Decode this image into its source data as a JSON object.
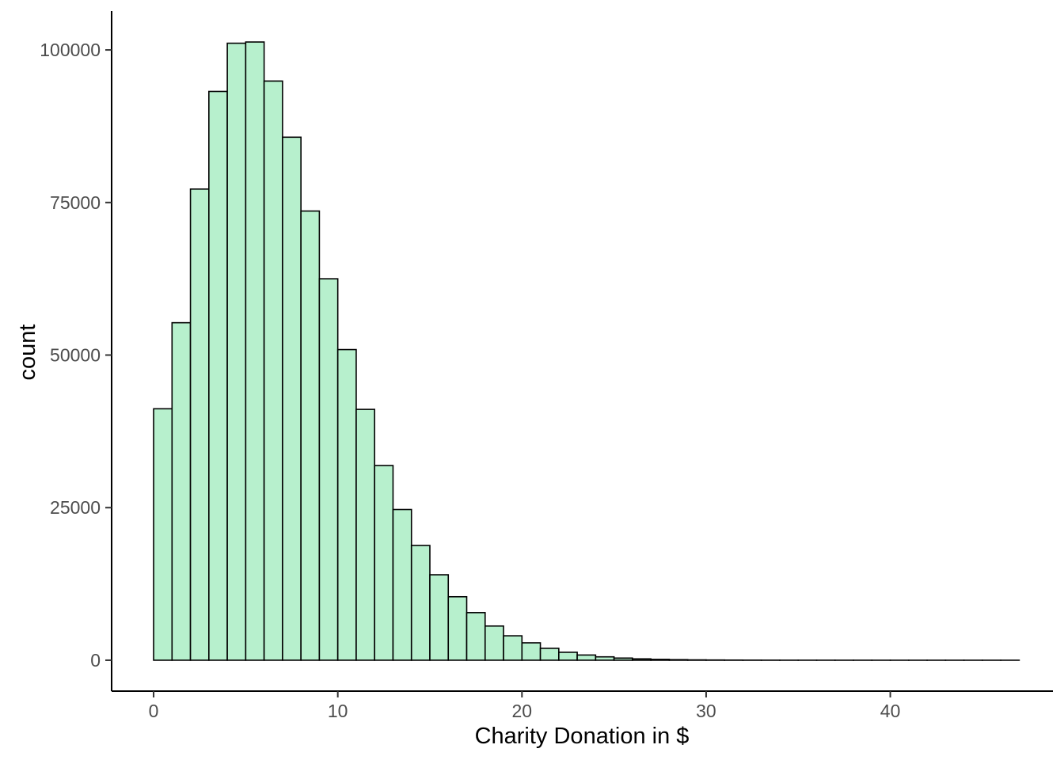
{
  "chart_data": {
    "type": "bar",
    "subtype": "histogram",
    "xlabel": "Charity Donation in $",
    "ylabel": "count",
    "bin_start": 0,
    "bin_width": 1,
    "counts": [
      41200,
      55300,
      77200,
      93200,
      101100,
      101300,
      94900,
      85700,
      73600,
      62500,
      50900,
      41100,
      31900,
      24700,
      18800,
      14000,
      10400,
      7800,
      5600,
      4000,
      2850,
      1950,
      1300,
      850,
      550,
      350,
      220,
      140,
      90,
      55,
      35,
      22,
      14,
      9,
      6,
      4,
      3,
      2,
      2,
      1,
      1,
      1,
      1,
      1,
      1,
      1,
      1
    ],
    "x_ticks": [
      0,
      10,
      20,
      30,
      40
    ],
    "x_tick_labels": [
      "0",
      "10",
      "20",
      "30",
      "40"
    ],
    "y_ticks": [
      0,
      25000,
      50000,
      75000,
      100000
    ],
    "y_tick_labels": [
      "0",
      "25000",
      "50000",
      "75000",
      "100000"
    ],
    "xlim": [
      -2.28,
      48.83
    ],
    "ylim": [
      -5065,
      106365
    ],
    "grid": false,
    "legend_position": "none",
    "bar_fill": "#b7f0cd",
    "bar_stroke": "#000000",
    "axis_color": "#000000",
    "tick_color": "#333333",
    "tick_label_color": "#4d4d4d",
    "axis_title_color": "#000000",
    "background_color": "#ffffff"
  }
}
